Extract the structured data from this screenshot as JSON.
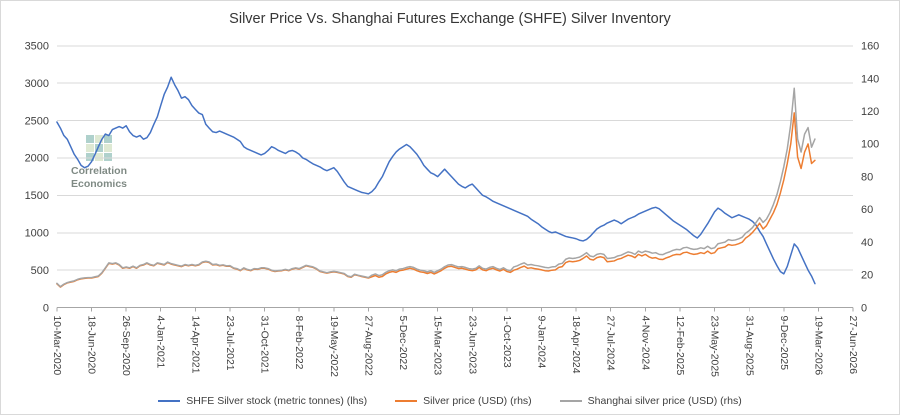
{
  "title": "Silver Price Vs. Shanghai Futures Exchange (SHFE) Silver Inventory",
  "watermark": {
    "line1": "Correlation",
    "line2": "Economics",
    "logo_colors": [
      "#4f9b8f",
      "#b7cfa0"
    ]
  },
  "legend": {
    "items": [
      {
        "label": "SHFE Silver stock (metric tonnes) (lhs)",
        "color": "#4472C4"
      },
      {
        "label": "Silver price (USD) (rhs)",
        "color": "#ED7D31"
      },
      {
        "label": "Shanghai silver price (USD) (rhs)",
        "color": "#A5A5A5"
      }
    ],
    "position": "bottom"
  },
  "chart_data": {
    "type": "line",
    "title": "Silver Price Vs. Shanghai Futures Exchange (SHFE) Silver Inventory",
    "grid": "horizontal",
    "x_axis": {
      "tick_interval_days": 100,
      "tick_labels": [
        "10-Mar-2020",
        "18-Jun-2020",
        "26-Sep-2020",
        "4-Jan-2021",
        "14-Apr-2021",
        "23-Jul-2021",
        "31-Oct-2021",
        "8-Feb-2022",
        "19-May-2022",
        "27-Aug-2022",
        "5-Dec-2022",
        "15-Mar-2023",
        "23-Jun-2023",
        "1-Oct-2023",
        "9-Jan-2024",
        "18-Apr-2024",
        "27-Jul-2024",
        "4-Nov-2024",
        "12-Feb-2025",
        "23-May-2025",
        "31-Aug-2025",
        "9-Dec-2025",
        "19-Mar-2026",
        "27-Jun-2026"
      ]
    },
    "y_axis_left": {
      "min": 0,
      "max": 3500,
      "tick_step": 500,
      "ticks": [
        0,
        500,
        1000,
        1500,
        2000,
        2500,
        3000,
        3500
      ]
    },
    "y_axis_right": {
      "min": 0,
      "max": 160,
      "tick_step": 20,
      "ticks": [
        0,
        20,
        40,
        60,
        80,
        100,
        120,
        140,
        160
      ]
    },
    "sample_step_days": 10,
    "series": [
      {
        "name": "SHFE Silver stock (metric tonnes) (lhs)",
        "axis": "left",
        "color": "#4472C4",
        "values": [
          2480,
          2400,
          2300,
          2250,
          2150,
          2050,
          1980,
          1900,
          1870,
          1890,
          1950,
          2050,
          2150,
          2250,
          2320,
          2300,
          2380,
          2400,
          2420,
          2400,
          2430,
          2350,
          2300,
          2280,
          2300,
          2250,
          2270,
          2340,
          2450,
          2550,
          2700,
          2850,
          2950,
          3080,
          2980,
          2900,
          2800,
          2820,
          2780,
          2700,
          2650,
          2600,
          2580,
          2450,
          2400,
          2350,
          2340,
          2360,
          2340,
          2320,
          2300,
          2280,
          2250,
          2220,
          2150,
          2120,
          2100,
          2080,
          2060,
          2040,
          2060,
          2100,
          2150,
          2130,
          2100,
          2080,
          2060,
          2090,
          2100,
          2080,
          2050,
          2000,
          1980,
          1950,
          1920,
          1900,
          1880,
          1850,
          1830,
          1850,
          1870,
          1820,
          1750,
          1680,
          1620,
          1600,
          1580,
          1560,
          1540,
          1530,
          1520,
          1550,
          1600,
          1680,
          1750,
          1850,
          1950,
          2020,
          2080,
          2120,
          2150,
          2180,
          2150,
          2100,
          2050,
          1980,
          1900,
          1850,
          1800,
          1780,
          1750,
          1800,
          1850,
          1800,
          1750,
          1700,
          1650,
          1620,
          1600,
          1630,
          1650,
          1600,
          1550,
          1500,
          1480,
          1450,
          1420,
          1400,
          1380,
          1360,
          1340,
          1320,
          1300,
          1280,
          1260,
          1240,
          1220,
          1180,
          1150,
          1120,
          1080,
          1050,
          1020,
          1000,
          1010,
          990,
          970,
          950,
          940,
          930,
          920,
          900,
          890,
          910,
          950,
          1000,
          1050,
          1080,
          1100,
          1130,
          1150,
          1170,
          1150,
          1120,
          1150,
          1180,
          1200,
          1220,
          1250,
          1270,
          1290,
          1310,
          1330,
          1340,
          1320,
          1280,
          1240,
          1200,
          1160,
          1130,
          1100,
          1070,
          1040,
          1000,
          960,
          930,
          980,
          1050,
          1120,
          1200,
          1280,
          1330,
          1300,
          1260,
          1230,
          1200,
          1220,
          1240,
          1220,
          1200,
          1180,
          1150,
          1100,
          1020,
          950,
          850,
          750,
          650,
          560,
          480,
          450,
          550,
          700,
          850,
          800,
          700,
          600,
          500,
          420,
          320
        ]
      },
      {
        "name": "Silver price (USD) (rhs)",
        "axis": "right",
        "color": "#ED7D31",
        "values": [
          14.5,
          12.5,
          14,
          15,
          15.5,
          16,
          17,
          17.5,
          17.8,
          18,
          18,
          18.5,
          19,
          21,
          24,
          27,
          26.5,
          27,
          26,
          24,
          24.5,
          24,
          25,
          24,
          25.5,
          26,
          27,
          26,
          25.5,
          27,
          26.5,
          26,
          27.5,
          26.5,
          26,
          25.5,
          25,
          26,
          25.5,
          26,
          25.5,
          26,
          27.5,
          28,
          27.5,
          26,
          26.2,
          25.5,
          25.8,
          25.2,
          25.3,
          24,
          23.5,
          22.5,
          24,
          23,
          22.5,
          23.5,
          23.3,
          24,
          24,
          23.5,
          22.5,
          22,
          22.3,
          22.5,
          23,
          22.5,
          23.5,
          24,
          23.5,
          24.5,
          25.5,
          25,
          24.5,
          23.5,
          22,
          21.5,
          21,
          21.5,
          21.8,
          21.5,
          21,
          20.5,
          19,
          18.5,
          20,
          19.5,
          19,
          18.5,
          18,
          18.8,
          19.5,
          18.5,
          19,
          20.5,
          21.5,
          22,
          21.5,
          22.5,
          22.8,
          23.5,
          24,
          23.5,
          22.5,
          21.8,
          21.5,
          20.8,
          21.5,
          20.5,
          21.5,
          22.5,
          24,
          25,
          25.2,
          24.5,
          23.8,
          24,
          23.5,
          22.8,
          22.5,
          23,
          24.5,
          23,
          22.5,
          23.5,
          24,
          23,
          22.3,
          23.3,
          22,
          21.5,
          22.8,
          23.5,
          24.5,
          25.3,
          24,
          24.3,
          23.8,
          23.5,
          23,
          22.5,
          22.3,
          22.8,
          23,
          24.5,
          25,
          27.5,
          28.3,
          28,
          28.3,
          28.8,
          30,
          31.5,
          29.5,
          29,
          30.5,
          31,
          30.5,
          28,
          28.2,
          28.5,
          29.5,
          30,
          31,
          32,
          31.5,
          30.5,
          32.5,
          31.5,
          32.5,
          31,
          30.2,
          30.5,
          29.5,
          29.3,
          30.3,
          31,
          32,
          32.5,
          32.3,
          33.5,
          33.8,
          33,
          32.5,
          32.8,
          33.5,
          33,
          34.5,
          33,
          33.5,
          36,
          36.5,
          37,
          38.5,
          38,
          38.3,
          39,
          40,
          42.5,
          44,
          46,
          48.5,
          51.5,
          48,
          50,
          54,
          58,
          63,
          70,
          78,
          88,
          100,
          119,
          92,
          85,
          95,
          100,
          88,
          90
        ]
      },
      {
        "name": "Shanghai silver price (USD) (rhs)",
        "axis": "right",
        "color": "#A5A5A5",
        "values": [
          14.8,
          12.8,
          14.3,
          15.3,
          15.8,
          16.3,
          17.3,
          17.8,
          18.1,
          18.3,
          18.3,
          18.8,
          19.3,
          21.3,
          24.3,
          27.3,
          26.8,
          27.3,
          26.3,
          24.3,
          24.8,
          24.3,
          25.3,
          24.3,
          25.8,
          26.3,
          27.3,
          26.3,
          25.8,
          27.3,
          26.8,
          26.3,
          27.8,
          26.8,
          26.3,
          25.8,
          25.3,
          26.3,
          25.8,
          26.3,
          25.8,
          26.3,
          27.8,
          28.3,
          27.8,
          26.3,
          26.5,
          25.8,
          26.1,
          25.5,
          25.6,
          24.3,
          23.8,
          22.8,
          24.3,
          23.3,
          22.8,
          23.8,
          23.6,
          24.3,
          24.3,
          23.8,
          22.8,
          22.3,
          22.6,
          22.8,
          23.3,
          22.8,
          23.8,
          24.3,
          23.8,
          24.8,
          25.8,
          25.3,
          24.8,
          23.8,
          22.3,
          21.8,
          21.3,
          21.8,
          22.1,
          21.8,
          21.3,
          20.8,
          19.3,
          18.8,
          20.3,
          19.8,
          19.3,
          18.8,
          18.3,
          19.8,
          20.5,
          19.5,
          20,
          21.5,
          22.5,
          23,
          22.5,
          23.5,
          23.8,
          24.5,
          25,
          24.5,
          23.5,
          22.8,
          22.5,
          21.8,
          22.5,
          21.5,
          22.5,
          23.5,
          25,
          26,
          26.2,
          25.5,
          24.8,
          25,
          24.5,
          23.8,
          23.5,
          24,
          25.5,
          24,
          23.5,
          24.5,
          25,
          24,
          23.3,
          24.3,
          23,
          22.5,
          24.8,
          25.5,
          26.5,
          27.3,
          26,
          26.3,
          25.8,
          25.5,
          25,
          24.5,
          24.3,
          24.8,
          25,
          26.5,
          27,
          29.5,
          30.3,
          30,
          30.3,
          30.8,
          32,
          33.5,
          31.5,
          31,
          32.5,
          33,
          32.5,
          30,
          30.2,
          30.5,
          31.5,
          32,
          33,
          34,
          33.5,
          32.5,
          34.5,
          33.5,
          34.5,
          34,
          33.2,
          33.5,
          32.5,
          32.3,
          33.3,
          34,
          35,
          35.5,
          35.3,
          36.5,
          36.8,
          36,
          35.5,
          35.8,
          36.5,
          36,
          37.5,
          36,
          36.5,
          39,
          39.5,
          40,
          41.5,
          41,
          41.3,
          42,
          43,
          45.5,
          47,
          49,
          52,
          55,
          52,
          54,
          58,
          63,
          69,
          77,
          86,
          97,
          112,
          134,
          103,
          95,
          106,
          110,
          98,
          103
        ]
      }
    ]
  }
}
